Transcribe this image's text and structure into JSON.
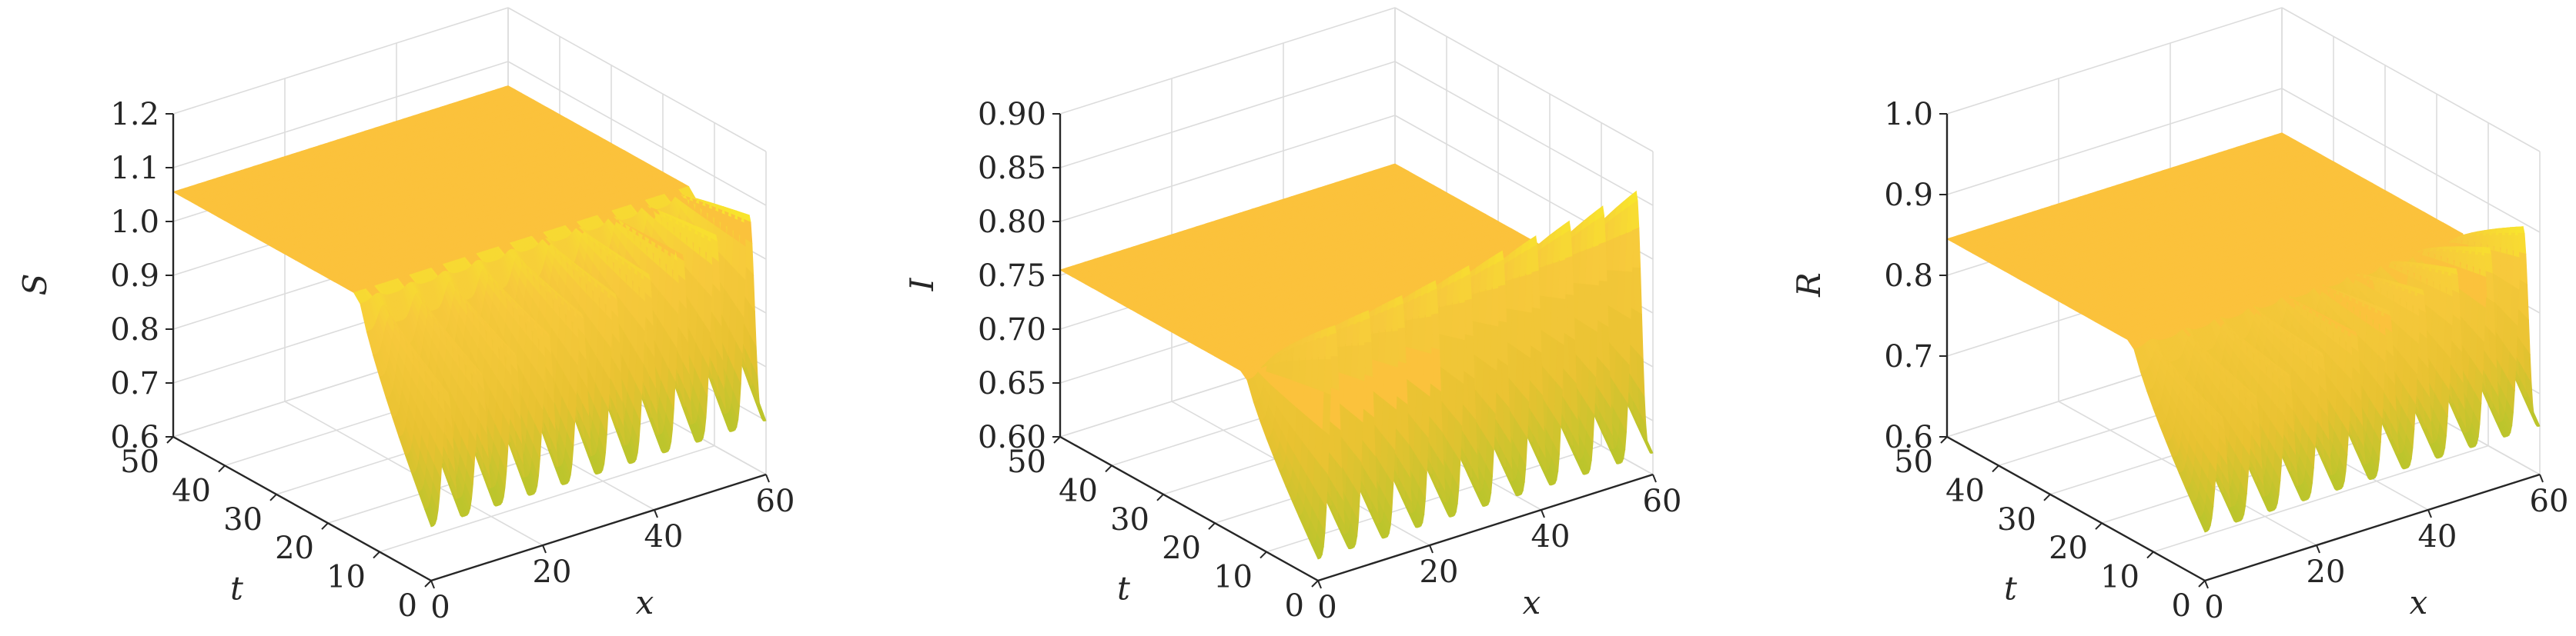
{
  "colors": {
    "surface_high": "#f8ea2a",
    "surface_mid": "#f7c93c",
    "surface_low": "#e8c231",
    "surface_trough": "#b9c52c",
    "surface_top": "#fbc23c",
    "grid": "#dcdcdc",
    "axis": "#262626"
  },
  "chart_data": [
    {
      "type": "surface",
      "zlabel": "S",
      "xlabel": "x",
      "ylabel": "t",
      "x_range": [
        0,
        60
      ],
      "t_range": [
        0,
        50
      ],
      "zlim": [
        0.6,
        1.2
      ],
      "x_ticks": [
        "0",
        "20",
        "40",
        "60"
      ],
      "t_ticks": [
        "0",
        "10",
        "20",
        "30",
        "40",
        "50"
      ],
      "z_ticks": [
        "0.6",
        "0.7",
        "0.8",
        "0.9",
        "1.0",
        "1.1",
        "1.2"
      ],
      "grid": true,
      "steady_value": 1.055,
      "onset_t": 14,
      "oscillation": {
        "peaks": 10,
        "trough": 0.7,
        "peak_start": 0.93,
        "peak_end": 1.1
      }
    },
    {
      "type": "surface",
      "zlabel": "I",
      "xlabel": "x",
      "ylabel": "t",
      "x_range": [
        0,
        60
      ],
      "t_range": [
        0,
        50
      ],
      "zlim": [
        0.6,
        0.9
      ],
      "x_ticks": [
        "0",
        "20",
        "40",
        "60"
      ],
      "t_ticks": [
        "0",
        "10",
        "20",
        "30",
        "40",
        "50"
      ],
      "z_ticks": [
        "0.60",
        "0.65",
        "0.70",
        "0.75",
        "0.80",
        "0.85",
        "0.90"
      ],
      "grid": true,
      "steady_value": 0.755,
      "onset_t": 14,
      "oscillation": {
        "peaks": 10,
        "trough": 0.62,
        "peak_start": 0.83,
        "peak_end": 0.87
      }
    },
    {
      "type": "surface",
      "zlabel": "R",
      "xlabel": "x",
      "ylabel": "t",
      "x_range": [
        0,
        60
      ],
      "t_range": [
        0,
        50
      ],
      "zlim": [
        0.6,
        1.0
      ],
      "x_ticks": [
        "0",
        "20",
        "40",
        "60"
      ],
      "t_ticks": [
        "0",
        "10",
        "20",
        "30",
        "40",
        "50"
      ],
      "z_ticks": [
        "0.6",
        "0.7",
        "0.8",
        "0.9",
        "1.0"
      ],
      "grid": true,
      "steady_value": 0.845,
      "onset_t": 14,
      "oscillation": {
        "peaks": 10,
        "trough": 0.66,
        "peak_start": 0.79,
        "peak_end": 0.92
      }
    }
  ]
}
